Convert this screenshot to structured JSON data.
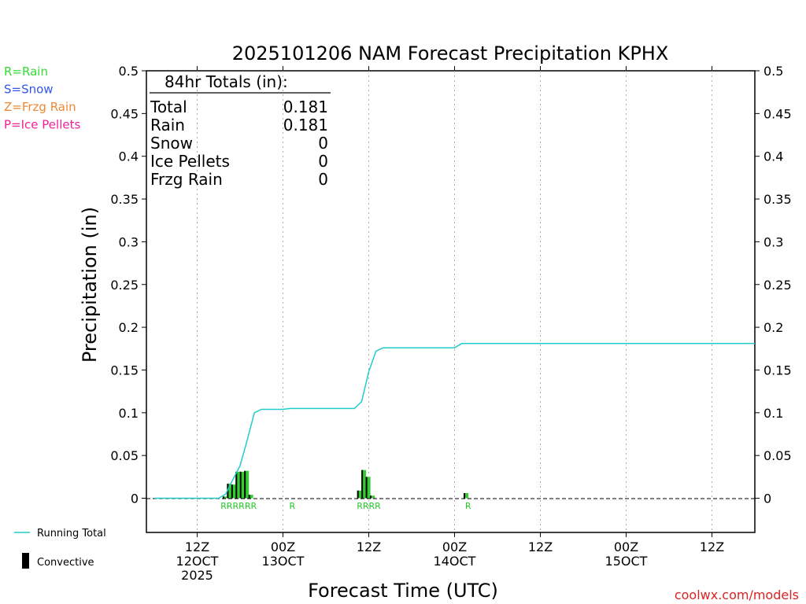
{
  "chart_data": {
    "type": "bar",
    "title": "2025101206 NAM Forecast Precipitation KPHX",
    "ylabel": "Precipitation (in)",
    "xlabel": "Forecast Time (UTC)",
    "ylim": [
      -0.04,
      0.5
    ],
    "y_ticks": [
      "0",
      "0.05",
      "0.1",
      "0.15",
      "0.2",
      "0.25",
      "0.3",
      "0.35",
      "0.4",
      "0.45",
      "0.5"
    ],
    "y_tick_values": [
      0,
      0.05,
      0.1,
      0.15,
      0.2,
      0.25,
      0.3,
      0.35,
      0.4,
      0.45,
      0.5
    ],
    "x_unit": "forecast hour",
    "xlim": [
      0,
      84
    ],
    "x_ticks": [
      {
        "hour": 6,
        "line1": "12Z",
        "line2": "12OCT",
        "line3": "2025"
      },
      {
        "hour": 18,
        "line1": "00Z",
        "line2": "13OCT",
        "line3": ""
      },
      {
        "hour": 30,
        "line1": "12Z",
        "line2": "",
        "line3": ""
      },
      {
        "hour": 42,
        "line1": "00Z",
        "line2": "14OCT",
        "line3": ""
      },
      {
        "hour": 54,
        "line1": "12Z",
        "line2": "",
        "line3": ""
      },
      {
        "hour": 66,
        "line1": "00Z",
        "line2": "15OCT",
        "line3": ""
      },
      {
        "hour": 78,
        "line1": "12Z",
        "line2": "",
        "line3": ""
      }
    ],
    "grid": "vertical dotted",
    "legend_top": [
      {
        "label": "R=Rain",
        "color": "#33dd33"
      },
      {
        "label": "S=Snow",
        "color": "#3355ee"
      },
      {
        "label": "Z=Frzg Rain",
        "color": "#ee8833"
      },
      {
        "label": "P=Ice Pellets",
        "color": "#ee2299"
      }
    ],
    "legend_bottom": {
      "running_total_label": "Running Total",
      "running_total_color": "#22cccc",
      "convective_label": "Convective"
    },
    "totals_box": {
      "header": "84hr Totals (in):",
      "rows": [
        {
          "label": "Total",
          "value": "0.181"
        },
        {
          "label": "Rain",
          "value": "0.181"
        },
        {
          "label": "Snow",
          "value": "0"
        },
        {
          "label": "Ice Pellets",
          "value": "0"
        },
        {
          "label": "Frzg Rain",
          "value": "0"
        }
      ]
    },
    "series": [
      {
        "name": "Running Total",
        "color": "#22cccc",
        "x": [
          0,
          9,
          10,
          11,
          12,
          13,
          14,
          15,
          16,
          17,
          18,
          19,
          20,
          28,
          29,
          30,
          31,
          32,
          33,
          34,
          35,
          40,
          41,
          42,
          43,
          84
        ],
        "y": [
          0,
          0,
          0.005,
          0.022,
          0.038,
          0.068,
          0.1,
          0.104,
          0.104,
          0.104,
          0.104,
          0.105,
          0.105,
          0.105,
          0.113,
          0.148,
          0.172,
          0.176,
          0.176,
          0.176,
          0.176,
          0.176,
          0.176,
          0.176,
          0.181,
          0.181
        ]
      },
      {
        "name": "Precipitation",
        "color": "#33cc33",
        "bars": [
          {
            "x": 9.9,
            "value": 0.002
          },
          {
            "x": 10.5,
            "value": 0.017
          },
          {
            "x": 11.1,
            "value": 0.016
          },
          {
            "x": 11.7,
            "value": 0.031
          },
          {
            "x": 12.3,
            "value": 0.031
          },
          {
            "x": 12.9,
            "value": 0.032
          },
          {
            "x": 13.5,
            "value": 0.004
          },
          {
            "x": 28.7,
            "value": 0.009
          },
          {
            "x": 29.3,
            "value": 0.033
          },
          {
            "x": 29.9,
            "value": 0.025
          },
          {
            "x": 30.5,
            "value": 0.003
          },
          {
            "x": 43.6,
            "value": 0.006
          }
        ]
      }
    ],
    "type_markers": [
      {
        "hour": 11.8,
        "text": "RRRRRR"
      },
      {
        "hour": 19.3,
        "text": "R"
      },
      {
        "hour": 30.0,
        "text": "RRRR"
      },
      {
        "hour": 43.9,
        "text": "R"
      }
    ],
    "credit": "coolwx.com/models"
  }
}
